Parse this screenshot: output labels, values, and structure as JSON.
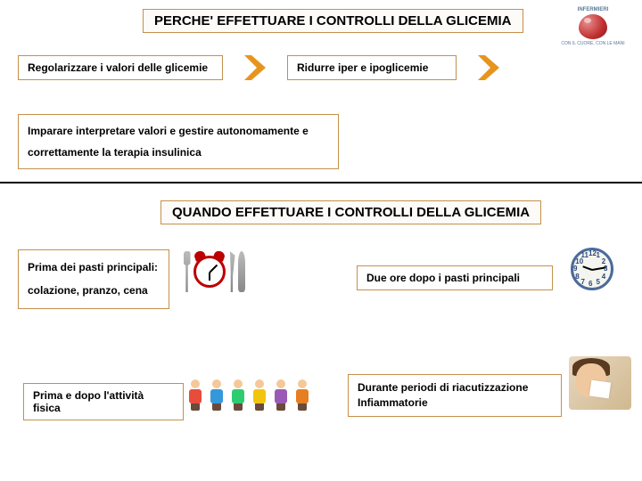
{
  "colors": {
    "box_border": "#c4904a",
    "chevron_fill": "#e7941e",
    "text": "#000000",
    "rule": "#000000"
  },
  "logo": {
    "line1": "INFERMIERI",
    "line2": "CON IL CUORE, CON LE MANI"
  },
  "section1": {
    "title": "PERCHE'  EFFETTUARE I CONTROLLI DELLA GLICEMIA",
    "box1": "Regolarizzare i valori delle glicemie",
    "box2": "Ridurre iper e ipoglicemie",
    "box3": "Imparare interpretare valori e gestire autonomamente e correttamente la terapia insulinica"
  },
  "section2": {
    "title": "QUANDO EFFETTUARE I CONTROLLI DELLA GLICEMIA",
    "q1_line1": "Prima dei pasti principali:",
    "q1_line2": "colazione, pranzo, cena",
    "q2": "Due ore dopo i pasti principali",
    "q3": "Prima e dopo l'attività fisica",
    "q4_line1": "Durante periodi di riacutizzazione",
    "q4_line2": "Infiammatorie",
    "clock_numbers": [
      "12",
      "1",
      "2",
      "3",
      "4",
      "5",
      "6",
      "7",
      "8",
      "9",
      "10",
      "11"
    ],
    "kid_colors": [
      "#e74c3c",
      "#3498db",
      "#2ecc71",
      "#f1c40f",
      "#9b59b6",
      "#e67e22"
    ]
  }
}
